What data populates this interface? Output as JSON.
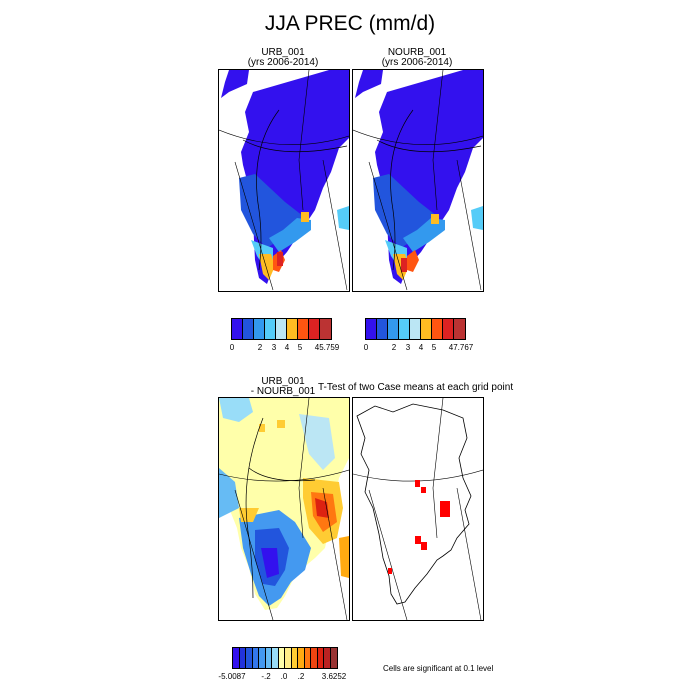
{
  "title": "JJA PREC (mm/d)",
  "panels": {
    "urb": {
      "title": "URB_001",
      "subtitle": "(yrs 2006-2014)"
    },
    "nourb": {
      "title": "NOURB_001",
      "subtitle": "(yrs 2006-2014)"
    },
    "diff": {
      "title": "URB_001",
      "subtitle": "- NOURB_001"
    },
    "ttest": {
      "title": "T-Test of two Case means at each grid point"
    }
  },
  "colorbars": {
    "top_colors": [
      "#3311ee",
      "#2255dd",
      "#3399ee",
      "#55ccf8",
      "#bbe6f4",
      "#ffbb22",
      "#ff5511",
      "#dd2222",
      "#bb3333"
    ],
    "urb_labels": [
      "0",
      "2",
      "3",
      "4",
      "5",
      "45.759"
    ],
    "nourb_labels": [
      "0",
      "2",
      "3",
      "4",
      "5",
      "47.767"
    ],
    "diff_colors": [
      "#3311ee",
      "#2233dd",
      "#2255dd",
      "#3377ee",
      "#4499f0",
      "#66bbf4",
      "#99ddf8",
      "#ffffaa",
      "#ffee88",
      "#ffcc33",
      "#ffaa11",
      "#ff7711",
      "#ee4411",
      "#dd2211",
      "#bb2222",
      "#993333"
    ],
    "diff_labels": [
      "-5.0087",
      "-.2",
      ".0",
      ".2",
      "3.6252"
    ]
  },
  "significance_note": "Cells are significant at 0.1 level"
}
